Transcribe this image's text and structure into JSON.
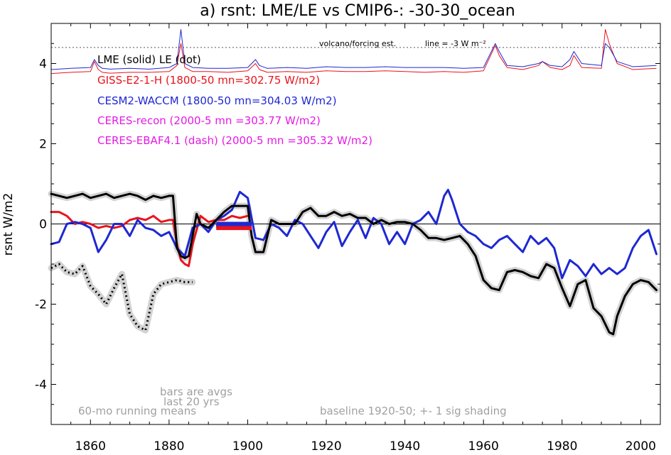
{
  "chart_data": {
    "type": "line",
    "title": "a) rsnt: LME/LE vs CMIP6-: -30-30_ocean",
    "ylabel": "rsnt W/m2",
    "xlabel": "",
    "xlim": [
      1850,
      2005
    ],
    "ylim": [
      -5,
      5
    ],
    "xticks": [
      1860,
      1880,
      1900,
      1920,
      1940,
      1960,
      1980,
      2000
    ],
    "yticks": [
      -4,
      -2,
      0,
      2,
      4
    ],
    "grid": false,
    "zero_line": 0,
    "legend": [
      {
        "text": "LME (solid)   LE (dot)",
        "color": "#000000"
      },
      {
        "text": "GISS-E2-1-H (1800-50 mn=302.75 W/m2)",
        "color": "#e8141c"
      },
      {
        "text": "CESM2-WACCM (1800-50 mn=304.03 W/m2)",
        "color": "#1e28d2"
      },
      {
        "text": "CERES-recon (2000-5 mn =303.77 W/m2)",
        "color": "#e619e6"
      },
      {
        "text": "CERES-EBAF4.1 (dash) (2000-5 mn =305.32 W/m2)",
        "color": "#e619e6"
      }
    ],
    "volcano_label": "volcano/forcing est.",
    "volcano_line_label": "line = -3 W m⁻²",
    "volcano_ref_y": 4.4,
    "annotations": {
      "bars_note_1": "bars are avgs",
      "bars_note_2": "last 20 yrs",
      "running_mean": "60-mo running means",
      "baseline": "baseline 1920-50; +- 1 sig shading"
    },
    "series": [
      {
        "name": "LME (solid)",
        "color": "#000000",
        "style": "solid",
        "shading": true,
        "x": [
          1850,
          1852,
          1854,
          1856,
          1858,
          1860,
          1862,
          1864,
          1866,
          1868,
          1870,
          1872,
          1874,
          1876,
          1878,
          1880,
          1881,
          1882,
          1883,
          1884,
          1885,
          1886,
          1887,
          1888,
          1890,
          1892,
          1894,
          1896,
          1898,
          1900,
          1901,
          1902,
          1904,
          1906,
          1908,
          1910,
          1912,
          1914,
          1916,
          1918,
          1920,
          1922,
          1924,
          1926,
          1928,
          1930,
          1932,
          1934,
          1936,
          1938,
          1940,
          1942,
          1944,
          1946,
          1948,
          1950,
          1952,
          1954,
          1956,
          1958,
          1960,
          1962,
          1964,
          1966,
          1968,
          1970,
          1972,
          1974,
          1976,
          1978,
          1980,
          1982,
          1984,
          1986,
          1988,
          1990,
          1992,
          1993,
          1994,
          1996,
          1998,
          2000,
          2002,
          2004
        ],
        "y": [
          0.75,
          0.7,
          0.65,
          0.7,
          0.75,
          0.65,
          0.7,
          0.75,
          0.65,
          0.7,
          0.75,
          0.7,
          0.6,
          0.7,
          0.65,
          0.7,
          0.7,
          -0.6,
          -0.8,
          -0.85,
          -0.8,
          -0.3,
          0.25,
          0.0,
          -0.1,
          0.1,
          0.3,
          0.45,
          0.45,
          0.45,
          -0.3,
          -0.7,
          -0.7,
          0.1,
          0.0,
          0.0,
          0.0,
          0.3,
          0.4,
          0.2,
          0.2,
          0.3,
          0.2,
          0.25,
          0.15,
          0.15,
          0.0,
          0.1,
          0.0,
          0.05,
          0.05,
          0.0,
          -0.15,
          -0.35,
          -0.35,
          -0.4,
          -0.35,
          -0.3,
          -0.5,
          -0.8,
          -1.4,
          -1.6,
          -1.65,
          -1.2,
          -1.15,
          -1.2,
          -1.3,
          -1.35,
          -1.0,
          -1.1,
          -1.6,
          -2.05,
          -1.5,
          -1.4,
          -2.1,
          -2.3,
          -2.7,
          -2.75,
          -2.3,
          -1.8,
          -1.5,
          -1.4,
          -1.45,
          -1.65
        ]
      },
      {
        "name": "LE (dot)",
        "color": "#000000",
        "style": "dot",
        "shading": true,
        "x": [
          1850,
          1852,
          1854,
          1856,
          1858,
          1860,
          1862,
          1864,
          1866,
          1868,
          1870,
          1872,
          1874,
          1876,
          1878,
          1880,
          1882,
          1884,
          1886
        ],
        "y": [
          -1.1,
          -1.0,
          -1.2,
          -1.25,
          -1.05,
          -1.55,
          -1.75,
          -2.0,
          -1.6,
          -1.25,
          -2.25,
          -2.55,
          -2.65,
          -1.75,
          -1.5,
          -1.45,
          -1.4,
          -1.45,
          -1.45
        ]
      },
      {
        "name": "GISS-E2-1-H",
        "color": "#e8141c",
        "style": "solid",
        "x": [
          1850,
          1852,
          1854,
          1856,
          1858,
          1860,
          1862,
          1864,
          1866,
          1868,
          1870,
          1872,
          1874,
          1876,
          1878,
          1880,
          1881,
          1882,
          1883,
          1884,
          1885,
          1886,
          1888,
          1890,
          1892,
          1894,
          1896,
          1898,
          1900
        ],
        "y": [
          0.3,
          0.3,
          0.2,
          0.0,
          0.05,
          0.0,
          -0.1,
          -0.05,
          -0.1,
          -0.05,
          0.1,
          0.15,
          0.1,
          0.2,
          0.05,
          0.1,
          0.1,
          -0.5,
          -0.9,
          -1.0,
          -1.05,
          -0.5,
          0.2,
          0.05,
          0.1,
          0.1,
          0.2,
          0.15,
          0.2
        ]
      },
      {
        "name": "CESM2-WACCM",
        "color": "#1e28d2",
        "style": "solid",
        "x": [
          1850,
          1852,
          1854,
          1856,
          1858,
          1860,
          1862,
          1864,
          1866,
          1868,
          1870,
          1872,
          1874,
          1876,
          1878,
          1880,
          1882,
          1884,
          1886,
          1888,
          1890,
          1892,
          1894,
          1896,
          1898,
          1900,
          1902,
          1904,
          1906,
          1908,
          1910,
          1912,
          1914,
          1916,
          1918,
          1920,
          1922,
          1924,
          1926,
          1928,
          1930,
          1932,
          1934,
          1936,
          1938,
          1940,
          1942,
          1944,
          1946,
          1948,
          1950,
          1951,
          1952,
          1954,
          1956,
          1958,
          1960,
          1962,
          1964,
          1966,
          1968,
          1970,
          1972,
          1974,
          1976,
          1978,
          1980,
          1982,
          1984,
          1986,
          1988,
          1990,
          1992,
          1994,
          1996,
          1998,
          2000,
          2002,
          2004
        ],
        "y": [
          -0.5,
          -0.45,
          0.0,
          0.05,
          0.0,
          -0.1,
          -0.7,
          -0.4,
          0.0,
          0.0,
          -0.3,
          0.1,
          -0.1,
          -0.15,
          -0.3,
          -0.2,
          -0.6,
          -0.8,
          -0.1,
          0.0,
          -0.2,
          0.1,
          0.2,
          0.35,
          0.8,
          0.65,
          -0.35,
          -0.4,
          0.0,
          -0.1,
          -0.3,
          0.1,
          0.0,
          -0.3,
          -0.6,
          -0.2,
          0.05,
          -0.55,
          -0.2,
          0.1,
          -0.35,
          0.15,
          0.0,
          -0.5,
          -0.2,
          -0.5,
          0.0,
          0.1,
          0.3,
          0.0,
          0.7,
          0.85,
          0.6,
          0.0,
          -0.2,
          -0.3,
          -0.5,
          -0.6,
          -0.4,
          -0.3,
          -0.5,
          -0.7,
          -0.3,
          -0.5,
          -0.35,
          -0.6,
          -1.35,
          -0.9,
          -1.05,
          -1.3,
          -1.0,
          -1.25,
          -1.1,
          -1.25,
          -1.1,
          -0.6,
          -0.3,
          -0.15,
          -0.75
        ]
      }
    ],
    "volcano_series": [
      {
        "name": "GISS-E2-1-H",
        "color": "#e8141c",
        "x": [
          1850,
          1855,
          1860,
          1861,
          1862,
          1863,
          1865,
          1870,
          1875,
          1880,
          1882,
          1883,
          1884,
          1886,
          1890,
          1895,
          1900,
          1902,
          1903,
          1905,
          1910,
          1915,
          1920,
          1925,
          1930,
          1935,
          1940,
          1945,
          1950,
          1955,
          1960,
          1963,
          1964,
          1966,
          1970,
          1974,
          1975,
          1977,
          1980,
          1982,
          1983,
          1985,
          1990,
          1991,
          1992,
          1994,
          1998,
          2004
        ],
        "y": [
          3.75,
          3.78,
          3.8,
          4.05,
          3.85,
          3.78,
          3.76,
          3.78,
          3.78,
          3.8,
          3.95,
          4.5,
          3.9,
          3.8,
          3.8,
          3.78,
          3.82,
          4.0,
          3.85,
          3.78,
          3.8,
          3.78,
          3.82,
          3.8,
          3.8,
          3.82,
          3.8,
          3.78,
          3.8,
          3.78,
          3.82,
          4.45,
          4.2,
          3.9,
          3.85,
          3.95,
          4.05,
          3.9,
          3.85,
          3.95,
          4.2,
          3.9,
          3.88,
          4.85,
          4.5,
          4.0,
          3.85,
          3.88
        ]
      },
      {
        "name": "CESM2-WACCM",
        "color": "#1e28d2",
        "x": [
          1850,
          1855,
          1860,
          1861,
          1862,
          1863,
          1865,
          1870,
          1875,
          1880,
          1882,
          1883,
          1884,
          1886,
          1890,
          1895,
          1900,
          1902,
          1903,
          1905,
          1910,
          1915,
          1920,
          1925,
          1930,
          1935,
          1940,
          1945,
          1950,
          1955,
          1960,
          1963,
          1964,
          1966,
          1970,
          1974,
          1975,
          1977,
          1980,
          1982,
          1983,
          1985,
          1990,
          1991,
          1992,
          1994,
          1998,
          2004
        ],
        "y": [
          3.85,
          3.88,
          3.9,
          4.1,
          3.95,
          3.88,
          3.86,
          3.88,
          3.86,
          3.9,
          4.0,
          4.85,
          4.0,
          3.9,
          3.88,
          3.88,
          3.9,
          4.1,
          3.95,
          3.88,
          3.9,
          3.88,
          3.92,
          3.9,
          3.9,
          3.92,
          3.9,
          3.9,
          3.9,
          3.88,
          3.9,
          4.5,
          4.3,
          3.95,
          3.92,
          4.0,
          4.05,
          3.95,
          3.92,
          4.1,
          4.3,
          4.0,
          3.95,
          4.5,
          4.4,
          4.05,
          3.92,
          3.95
        ]
      }
    ],
    "bars": [
      {
        "name": "LME avg",
        "color": "#000000",
        "x0": 1892,
        "x1": 1901,
        "y": -0.05
      },
      {
        "name": "GISS-E2-1-H avg",
        "color": "#e8141c",
        "x0": 1892,
        "x1": 1901,
        "y": -0.1
      },
      {
        "name": "CESM2-WACCM avg",
        "color": "#1e28d2",
        "x0": 1892,
        "x1": 1901,
        "y": 0.0
      }
    ]
  }
}
